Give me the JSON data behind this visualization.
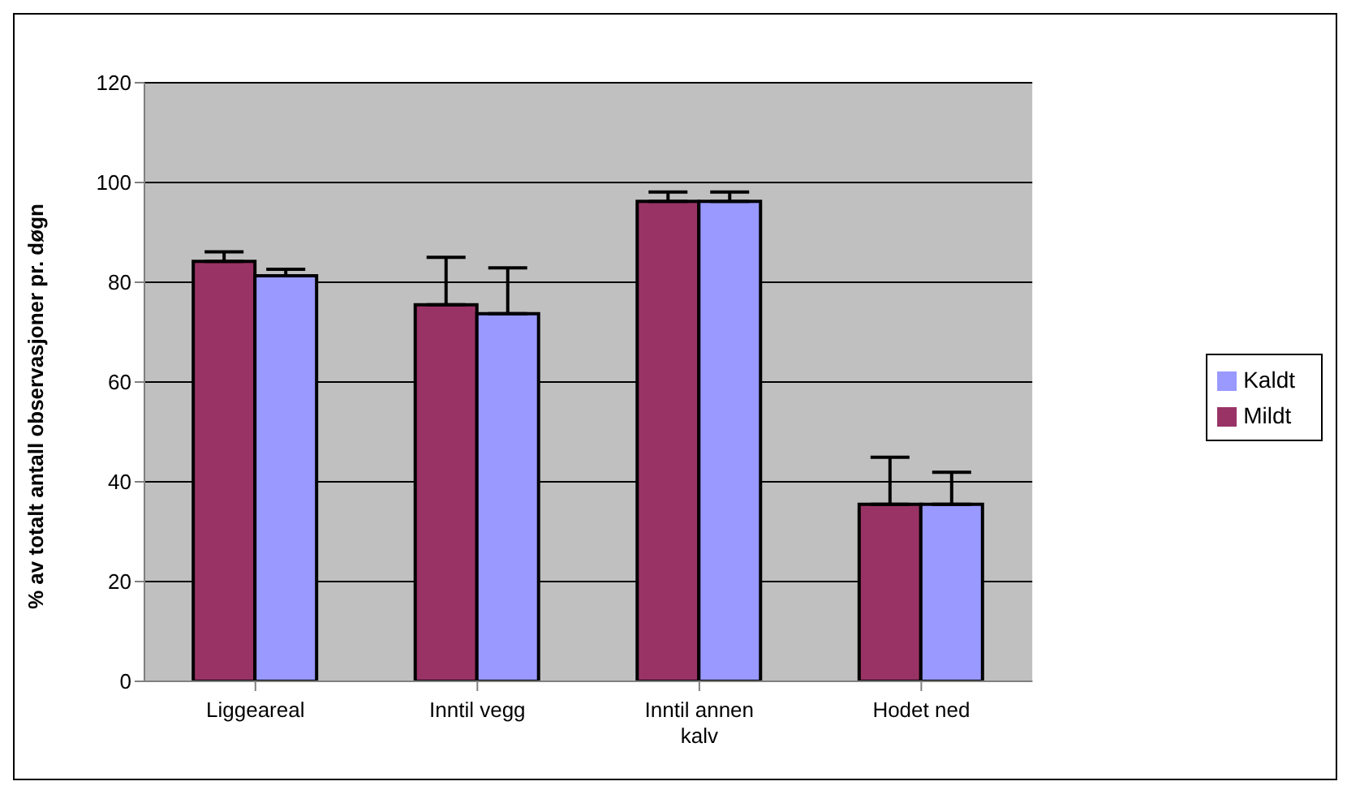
{
  "chart_data": {
    "type": "bar",
    "ylabel": "% av totalt antall observasjoner pr. døgn",
    "categories": [
      "Liggeareal",
      "Inntil vegg",
      "Inntil annen kalv",
      "Hodet ned"
    ],
    "series": [
      {
        "name": "Mildt",
        "color": "#993366",
        "values": [
          84.2,
          75.5,
          96.2,
          35.5
        ],
        "errors": [
          [
            84.2,
            86.1
          ],
          [
            75.5,
            85.0
          ],
          [
            96.2,
            98.1
          ],
          [
            35.5,
            44.9
          ]
        ]
      },
      {
        "name": "Kaldt",
        "color": "#9999ff",
        "values": [
          81.3,
          73.7,
          96.2,
          35.5
        ],
        "errors": [
          [
            81.3,
            82.6
          ],
          [
            73.7,
            82.9
          ],
          [
            96.2,
            98.1
          ],
          [
            35.5,
            41.9
          ]
        ]
      }
    ],
    "ylim": [
      0,
      120
    ],
    "yticks": [
      0,
      20,
      40,
      60,
      80,
      100,
      120
    ],
    "grid": "y",
    "legend": "right"
  }
}
